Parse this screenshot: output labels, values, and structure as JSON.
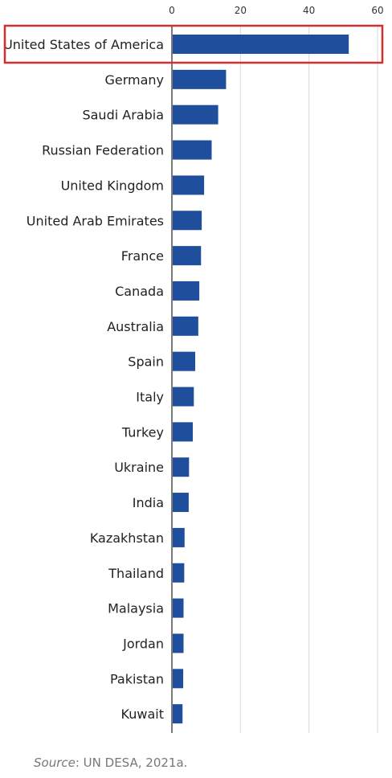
{
  "chart_data": {
    "type": "bar",
    "orientation": "horizontal",
    "categories": [
      "United States of America",
      "Germany",
      "Saudi Arabia",
      "Russian Federation",
      "United Kingdom",
      "United Arab Emirates",
      "France",
      "Canada",
      "Australia",
      "Spain",
      "Italy",
      "Turkey",
      "Ukraine",
      "India",
      "Kazakhstan",
      "Thailand",
      "Malaysia",
      "Jordan",
      "Pakistan",
      "Kuwait"
    ],
    "values": [
      51.6,
      15.8,
      13.5,
      11.6,
      9.4,
      8.7,
      8.5,
      8.0,
      7.7,
      6.8,
      6.4,
      6.1,
      5.0,
      4.9,
      3.7,
      3.6,
      3.4,
      3.4,
      3.3,
      3.1
    ],
    "xlim": [
      0,
      60
    ],
    "xticks": [
      0,
      20,
      40,
      60
    ],
    "tick_labels": [
      "0",
      "20",
      "40",
      "60"
    ],
    "axis_position": "top",
    "grid": true,
    "bar_color": "#1f4e9c",
    "highlight": {
      "category": "United States of America",
      "color": "#d32f2f"
    }
  },
  "source": {
    "prefix": "Source",
    "text": ": UN DESA, 2021a."
  }
}
